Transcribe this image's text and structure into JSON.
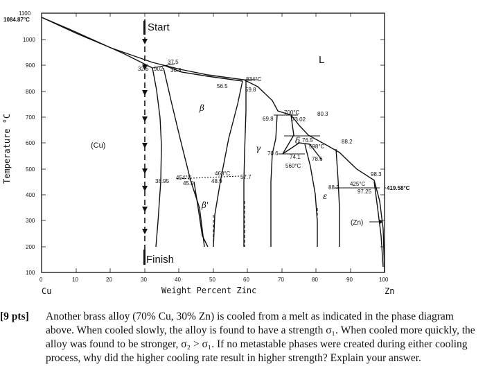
{
  "diagram": {
    "y_axis_label": "Temperature °C",
    "x_axis_label": "Weight Percent Zinc",
    "x_left_element": "Cu",
    "x_right_element": "Zn",
    "x_ticks": [
      "0",
      "10",
      "20",
      "30",
      "40",
      "50",
      "60",
      "70",
      "80",
      "90",
      "100"
    ],
    "y_ticks": [
      "1100",
      "1000",
      "900",
      "800",
      "700",
      "600",
      "500",
      "400",
      "300",
      "200",
      "100"
    ],
    "cu_melting_label": "1084.87°C",
    "zn_melting_label": "419.58°C",
    "start_label": "Start",
    "finish_label": "Finish",
    "phases": {
      "liquid": "L",
      "cu": "(Cu)",
      "beta": "β",
      "beta_prime": "β'",
      "gamma": "γ",
      "delta": "δ",
      "epsilon": "ε",
      "zn": "(Zn)"
    },
    "point_labels": {
      "p32_5": "32.5",
      "t902": "902",
      "p37_5": "37.5",
      "p36_8": "36.8",
      "p56_5": "56.5",
      "t834": "834°C",
      "p59_8": "59.8",
      "p69_8": "69.8",
      "t700": "700°C",
      "p73_02": "73.02",
      "p80_3": "80.3",
      "p76_5": "76.5",
      "t598": "598°C",
      "p88_2": "88.2",
      "p70_6": "70.6",
      "p74_1": "74.1",
      "p78_6": "78.6",
      "t560": "560°C",
      "p38_95": "38.95",
      "t454": "454°C",
      "p45_5": "45.5",
      "t468": "468°C",
      "p48_9": "48.9",
      "p57_7": "57.7",
      "p98_3": "98.3",
      "t425": "425°C",
      "p88_3": "88.3",
      "p97_25": "97.25"
    }
  },
  "question": {
    "points": "[9 pts]",
    "text": "Another brass alloy (70% Cu, 30% Zn) is cooled from a melt as indicated in the phase diagram above. When cooled slowly, the alloy is found to have a strength σ₁. When cooled more quickly, the alloy was found to be stronger, σ₂ > σ₁. If no metastable phases were created during either cooling process, why did the higher cooling rate result in higher strength? Explain your answer."
  }
}
